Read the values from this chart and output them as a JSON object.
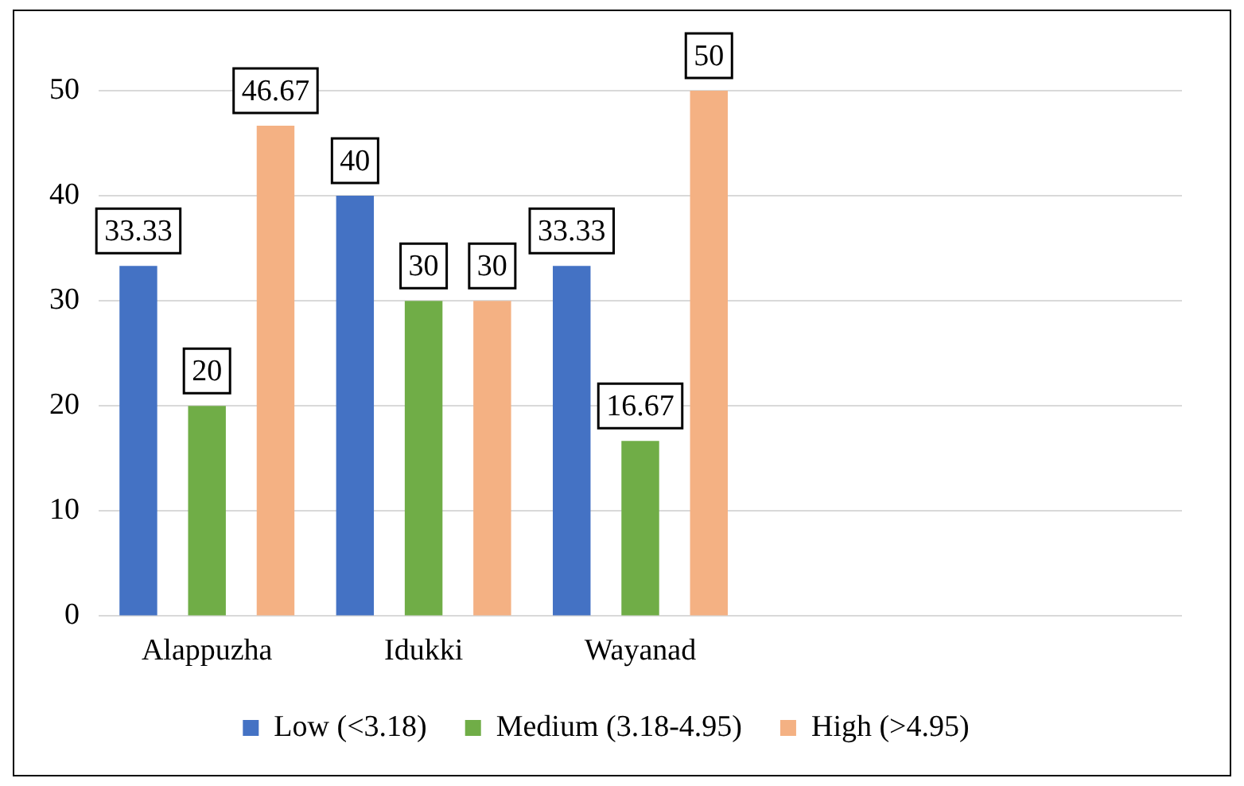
{
  "chart_data": {
    "type": "bar",
    "categories": [
      "Alappuzha",
      "Idukki",
      "Wayanad",
      null,
      null
    ],
    "series": [
      {
        "name": "Low (<3.18)",
        "color": "#4472c4",
        "values": [
          33.33,
          40,
          33.33,
          null,
          null
        ]
      },
      {
        "name": "Medium (3.18-4.95)",
        "color": "#70ad47",
        "values": [
          20,
          30,
          16.67,
          null,
          null
        ]
      },
      {
        "name": "High (>4.95)",
        "color": "#f4b183",
        "values": [
          46.67,
          30,
          50,
          null,
          null
        ]
      }
    ],
    "ylim": [
      0,
      50
    ],
    "yticks": [
      0,
      10,
      20,
      30,
      40,
      50
    ],
    "grid": "y",
    "legend": "bottom",
    "data_labels": true
  }
}
